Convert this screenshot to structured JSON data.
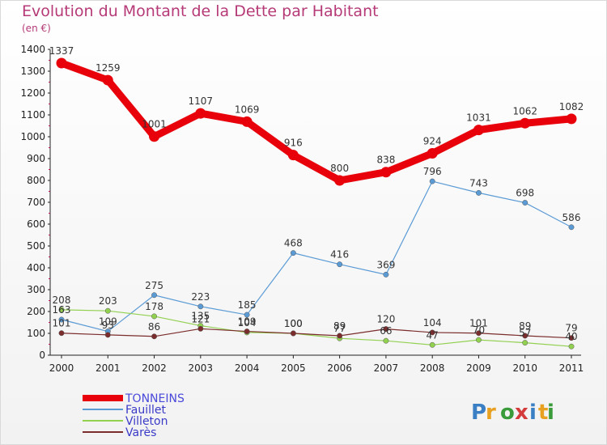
{
  "title": "Evolution du Montant de la Dette par Habitant",
  "subtitle": "(en €)",
  "brand": {
    "letters": [
      "P",
      "r",
      "o",
      "x",
      "i",
      "t",
      "i"
    ],
    "colors": [
      "#3a7fc4",
      "#e8a020",
      "#3a9b3a",
      "#d43c3c",
      "#3a7fc4",
      "#e8a020",
      "#3a9b3a"
    ]
  },
  "chart_data": {
    "type": "line",
    "title": "Evolution du Montant de la Dette par Habitant",
    "ylabel": "(en €)",
    "categories": [
      "2000",
      "2001",
      "2002",
      "2003",
      "2004",
      "2005",
      "2006",
      "2007",
      "2008",
      "2009",
      "2010",
      "2011"
    ],
    "ylim": [
      0,
      1400
    ],
    "yticks": [
      "0",
      "100",
      "200",
      "300",
      "400",
      "500",
      "600",
      "700",
      "800",
      "900",
      "1000",
      "1100",
      "1200",
      "1300",
      "1400"
    ],
    "grid": false,
    "legend_position": "bottom-left",
    "series": [
      {
        "name": "TONNEINS",
        "color": "#e8000b",
        "values": [
          1337,
          1259,
          1001,
          1107,
          1069,
          916,
          800,
          838,
          924,
          1031,
          1062,
          1082
        ],
        "labels": [
          "1337",
          "1259",
          "1001",
          "1107",
          "1069",
          "916",
          "800",
          "838",
          "924",
          "1031",
          "1062",
          "1082"
        ]
      },
      {
        "name": "Fauillet",
        "color": "#5b9bd5",
        "values": [
          163,
          109,
          275,
          223,
          185,
          468,
          416,
          369,
          796,
          743,
          698,
          586
        ],
        "labels": [
          "163",
          "109",
          "275",
          "223",
          "185",
          "468",
          "416",
          "369",
          "796",
          "743",
          "698",
          "586"
        ]
      },
      {
        "name": "Villeton",
        "color": "#92d050",
        "values": [
          208,
          203,
          178,
          135,
          104,
          100,
          77,
          66,
          47,
          70,
          57,
          40
        ],
        "labels": [
          "208",
          "203",
          "178",
          "135",
          "104",
          "100",
          "77",
          "66",
          "47",
          "70",
          "57",
          "40"
        ]
      },
      {
        "name": "Varès",
        "color": "#7b2c2c",
        "values": [
          101,
          93,
          86,
          121,
          109,
          100,
          89,
          120,
          104,
          101,
          89,
          79
        ],
        "labels": [
          "101",
          "93",
          "86",
          "121",
          "109",
          "100",
          "89",
          "120",
          "104",
          "101",
          "89",
          "79"
        ]
      }
    ]
  }
}
